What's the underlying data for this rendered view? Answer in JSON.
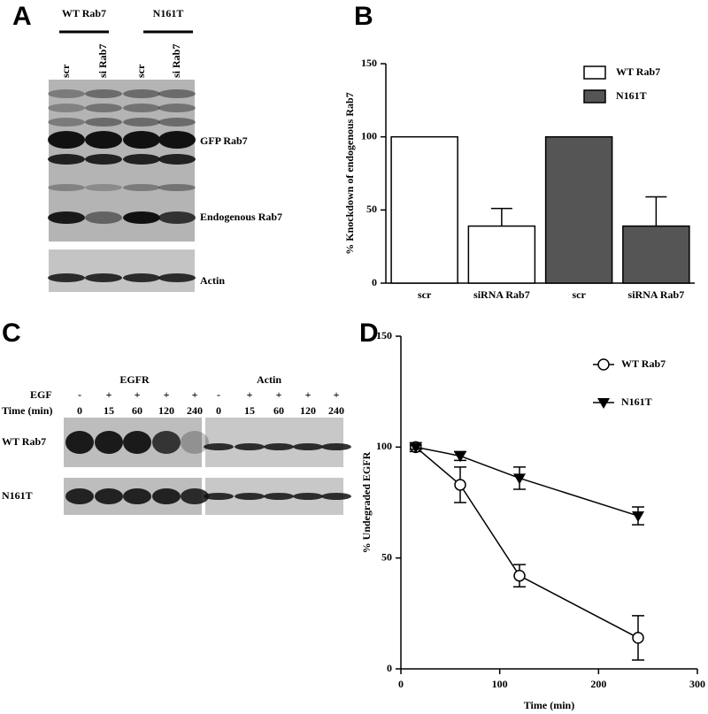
{
  "panels": [
    "A",
    "B",
    "C",
    "D"
  ],
  "blot_a": {
    "groups": [
      "WT Rab7",
      "N161T"
    ],
    "lanes": [
      "scr",
      "si Rab7",
      "scr",
      "si Rab7"
    ],
    "bands": [
      "GFP Rab7",
      "Endogenous Rab7"
    ],
    "loading": "Actin"
  },
  "blot_c": {
    "titles": [
      "EGFR",
      "Actin"
    ],
    "egf_label": "EGF",
    "egf": [
      "-",
      "+",
      "+",
      "+",
      "+"
    ],
    "time_label": "Time (min)",
    "times": [
      "0",
      "15",
      "60",
      "120",
      "240"
    ],
    "rows": [
      "WT Rab7",
      "N161T"
    ]
  },
  "chart_data": [
    {
      "type": "bar",
      "ylabel": "% Knockdown of endogenous Rab7",
      "categories": [
        "scr",
        "siRNA Rab7",
        "scr",
        "siRNA Rab7"
      ],
      "series": [
        {
          "name": "WT Rab7",
          "color": "#ffffff",
          "values": [
            100,
            39,
            null,
            null
          ],
          "errors": [
            null,
            12,
            null,
            null
          ]
        },
        {
          "name": "N161T",
          "color": "#555555",
          "values": [
            null,
            null,
            100,
            39
          ],
          "errors": [
            null,
            null,
            null,
            20
          ]
        }
      ],
      "ylim": [
        0,
        150
      ],
      "yticks": [
        0,
        50,
        100,
        150
      ],
      "legend": "upper right"
    },
    {
      "type": "line",
      "xlabel": "Time (min)",
      "ylabel": "% Undegraded EGFR",
      "x": [
        15,
        60,
        120,
        240
      ],
      "series": [
        {
          "name": "WT Rab7",
          "color": "#000000",
          "marker": "open-circle",
          "values": [
            100,
            83,
            42,
            14
          ],
          "errors": [
            2,
            8,
            5,
            10
          ]
        },
        {
          "name": "N161T",
          "color": "#000000",
          "marker": "filled-triangle-down",
          "values": [
            100,
            96,
            86,
            69
          ],
          "errors": [
            1,
            2,
            5,
            4
          ]
        }
      ],
      "xlim": [
        0,
        300
      ],
      "xticks": [
        0,
        100,
        200,
        300
      ],
      "ylim": [
        0,
        150
      ],
      "yticks": [
        0,
        50,
        100,
        150
      ],
      "legend": "upper right"
    }
  ]
}
